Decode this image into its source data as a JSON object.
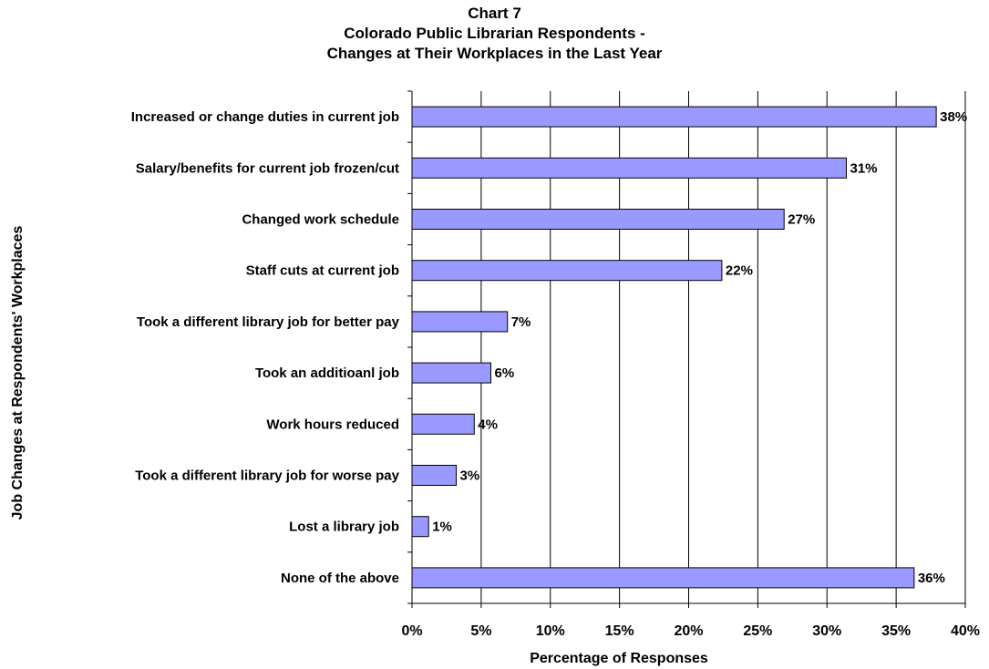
{
  "chart_data": {
    "type": "bar",
    "orientation": "horizontal",
    "title": [
      "Chart 7",
      "Colorado Public Librarian Respondents -",
      "Changes at Their Workplaces in the Last Year"
    ],
    "xlabel": "Percentage of Responses",
    "ylabel": "Job Changes at Respondents' Workplaces",
    "categories": [
      "Increased or change duties in current job",
      "Salary/benefits for current job frozen/cut",
      "Changed work schedule",
      "Staff cuts at current job",
      "Took a different library job for better pay",
      "Took an additioanl job",
      "Work hours reduced",
      "Took a different library job for worse pay",
      "Lost a library job",
      "None of the above"
    ],
    "values": [
      37.9,
      31.4,
      26.9,
      22.4,
      6.9,
      5.7,
      4.5,
      3.2,
      1.2,
      36.3
    ],
    "data_labels": [
      "38%",
      "31%",
      "27%",
      "22%",
      "7%",
      "6%",
      "4%",
      "3%",
      "1%",
      "36%"
    ],
    "xlim": [
      0,
      40
    ],
    "xticks": [
      0,
      5,
      10,
      15,
      20,
      25,
      30,
      35,
      40
    ],
    "xtick_labels": [
      "0%",
      "5%",
      "10%",
      "15%",
      "20%",
      "25%",
      "30%",
      "35%",
      "40%"
    ],
    "grid": "vertical",
    "legend": "none",
    "bar_color": "#9999ff",
    "bar_edge_color": "#000000"
  }
}
